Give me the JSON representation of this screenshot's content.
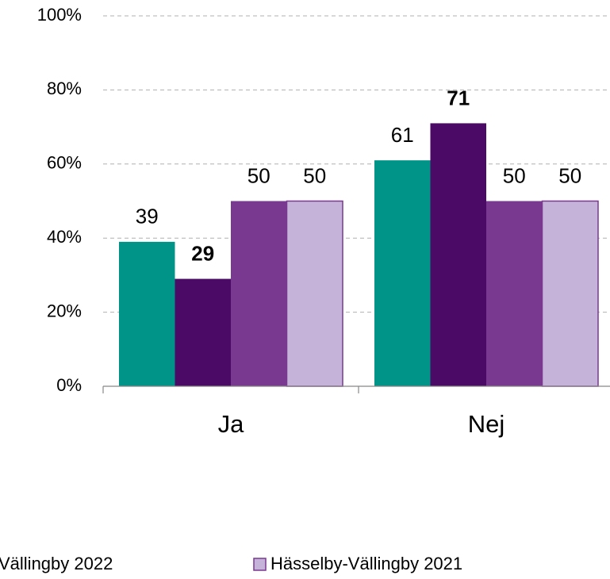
{
  "chart_data": {
    "type": "bar",
    "categories": [
      "Ja",
      "Nej"
    ],
    "series": [
      {
        "color": "#009488",
        "values": [
          39,
          61
        ],
        "bold": false
      },
      {
        "color": "#4a0a66",
        "values": [
          29,
          71
        ],
        "bold": true
      },
      {
        "name": "Vällingby 2022",
        "color": "#7a3990",
        "values": [
          50,
          50
        ],
        "bold": false
      },
      {
        "name": "Hässelby-Vällingby 2021",
        "color": "#c6b3d9",
        "values": [
          50,
          50
        ],
        "bold": false
      }
    ],
    "ylim": [
      0,
      100
    ],
    "yticks": [
      {
        "value": 0,
        "label": "0%"
      },
      {
        "value": 20,
        "label": "20%"
      },
      {
        "value": 40,
        "label": "40%"
      },
      {
        "value": 60,
        "label": "60%"
      },
      {
        "value": 80,
        "label": "80%"
      },
      {
        "value": 100,
        "label": "100%"
      }
    ],
    "grid": true
  }
}
